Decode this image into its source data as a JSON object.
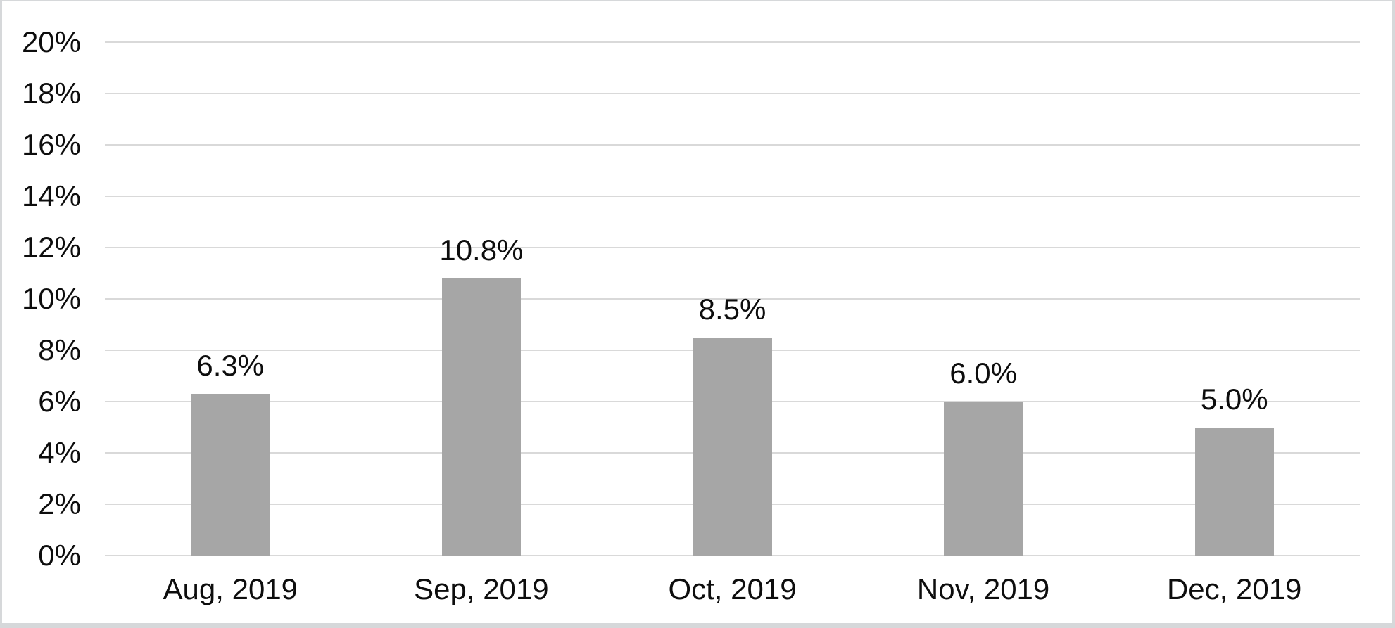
{
  "chart_data": {
    "type": "bar",
    "title": "",
    "xlabel": "",
    "ylabel": "",
    "categories": [
      "Aug, 2019",
      "Sep, 2019",
      "Oct, 2019",
      "Nov, 2019",
      "Dec, 2019"
    ],
    "values": [
      6.3,
      10.8,
      8.5,
      6.0,
      5.0
    ],
    "data_labels": [
      "6.3%",
      "10.8%",
      "8.5%",
      "6.0%",
      "5.0%"
    ],
    "y_ticks": [
      {
        "value": 0,
        "label": "0%"
      },
      {
        "value": 2,
        "label": "2%"
      },
      {
        "value": 4,
        "label": "4%"
      },
      {
        "value": 6,
        "label": "6%"
      },
      {
        "value": 8,
        "label": "8%"
      },
      {
        "value": 10,
        "label": "10%"
      },
      {
        "value": 12,
        "label": "12%"
      },
      {
        "value": 14,
        "label": "14%"
      },
      {
        "value": 16,
        "label": "16%"
      },
      {
        "value": 18,
        "label": "18%"
      },
      {
        "value": 20,
        "label": "20%"
      }
    ],
    "ylim": [
      0,
      20
    ],
    "grid": "horizontal",
    "legend": "none",
    "colors": {
      "bar": "#a6a6a6",
      "gridline": "#d9d9d9",
      "axis_line": "#d9d9d9",
      "text": "#0d0d0d",
      "background": "#ffffff",
      "frame_border": "#d6d8da"
    }
  }
}
